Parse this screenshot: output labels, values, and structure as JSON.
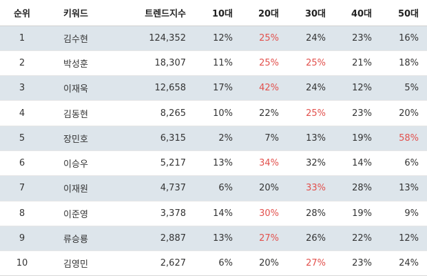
{
  "table": {
    "headers": [
      "순위",
      "키워드",
      "트렌드지수",
      "10대",
      "20대",
      "30대",
      "40대",
      "50대"
    ],
    "highlight_color": "#e2504c",
    "rows": [
      {
        "rank": "1",
        "keyword": "김수현",
        "index": "124,352",
        "age10": "12%",
        "age20": "25%",
        "age30": "24%",
        "age40": "23%",
        "age50": "16%",
        "highlight": "age20"
      },
      {
        "rank": "2",
        "keyword": "박성훈",
        "index": "18,307",
        "age10": "11%",
        "age20": "25%",
        "age30": "25%",
        "age40": "21%",
        "age50": "18%",
        "highlight": "age20,age30"
      },
      {
        "rank": "3",
        "keyword": "이재욱",
        "index": "12,658",
        "age10": "17%",
        "age20": "42%",
        "age30": "24%",
        "age40": "12%",
        "age50": "5%",
        "highlight": "age20"
      },
      {
        "rank": "4",
        "keyword": "김동현",
        "index": "8,265",
        "age10": "10%",
        "age20": "22%",
        "age30": "25%",
        "age40": "23%",
        "age50": "20%",
        "highlight": "age30"
      },
      {
        "rank": "5",
        "keyword": "장민호",
        "index": "6,315",
        "age10": "2%",
        "age20": "7%",
        "age30": "13%",
        "age40": "19%",
        "age50": "58%",
        "highlight": "age50"
      },
      {
        "rank": "6",
        "keyword": "이승우",
        "index": "5,217",
        "age10": "13%",
        "age20": "34%",
        "age30": "32%",
        "age40": "14%",
        "age50": "6%",
        "highlight": "age20"
      },
      {
        "rank": "7",
        "keyword": "이재원",
        "index": "4,737",
        "age10": "6%",
        "age20": "20%",
        "age30": "33%",
        "age40": "28%",
        "age50": "13%",
        "highlight": "age30"
      },
      {
        "rank": "8",
        "keyword": "이준영",
        "index": "3,378",
        "age10": "14%",
        "age20": "30%",
        "age30": "28%",
        "age40": "19%",
        "age50": "9%",
        "highlight": "age20"
      },
      {
        "rank": "9",
        "keyword": "류승룡",
        "index": "2,887",
        "age10": "13%",
        "age20": "27%",
        "age30": "26%",
        "age40": "22%",
        "age50": "12%",
        "highlight": "age20"
      },
      {
        "rank": "10",
        "keyword": "김영민",
        "index": "2,627",
        "age10": "6%",
        "age20": "20%",
        "age30": "27%",
        "age40": "23%",
        "age50": "24%",
        "highlight": "age30"
      }
    ]
  }
}
